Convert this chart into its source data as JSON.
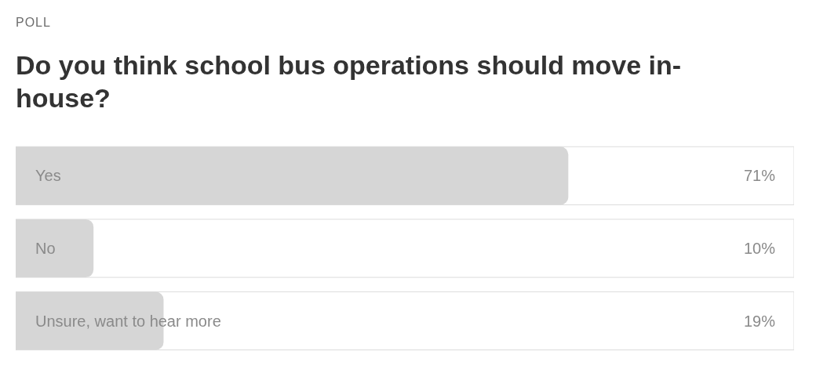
{
  "chart_data": {
    "type": "bar",
    "orientation": "horizontal",
    "title": "Do you think school bus operations should move in-house?",
    "annotations": [
      "POLL"
    ],
    "categories": [
      "Yes",
      "No",
      "Unsure, want to hear more"
    ],
    "values": [
      71,
      10,
      19
    ],
    "value_labels": [
      "71%",
      "10%",
      "19%"
    ],
    "color": "#d6d6d6",
    "xlim": [
      0,
      100
    ],
    "tick_labels": "y"
  }
}
